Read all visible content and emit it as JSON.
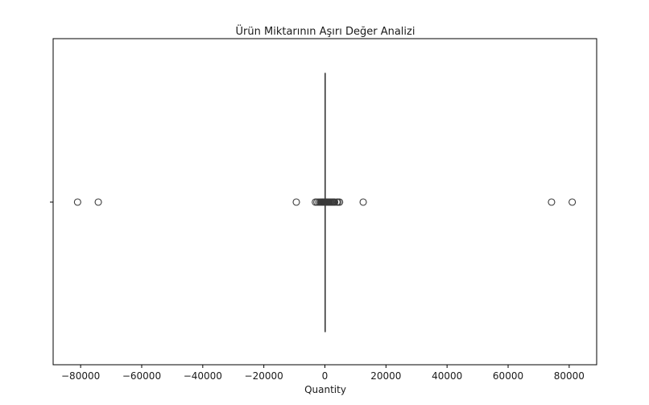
{
  "chart_data": {
    "type": "boxplot",
    "orientation": "horizontal",
    "title": "Ürün Miktarının Aşırı Değer Analizi",
    "xlabel": "Quantity",
    "ylabel": "",
    "xlim": [
      -89000,
      89000
    ],
    "xticks": [
      -80000,
      -60000,
      -40000,
      -20000,
      0,
      20000,
      40000,
      60000,
      80000
    ],
    "xtick_labels": [
      "−80000",
      "−60000",
      "−40000",
      "−20000",
      "0",
      "20000",
      "40000",
      "60000",
      "80000"
    ],
    "grid": false,
    "legend": "none",
    "series": [
      {
        "whisker_low": -13,
        "q1": 2,
        "median": 6,
        "q3": 12,
        "whisker_high": 26,
        "outliers": [
          -80995,
          -74215,
          -9360,
          -3114,
          -2600,
          -2000,
          -1500,
          -1200,
          -900,
          -700,
          -500,
          -400,
          -300,
          -250,
          -200,
          -150,
          -120,
          -100,
          -80,
          -60,
          -50,
          -40,
          -30,
          30,
          40,
          50,
          60,
          80,
          100,
          120,
          150,
          200,
          250,
          300,
          400,
          500,
          600,
          700,
          800,
          900,
          1000,
          1200,
          1300,
          1500,
          1800,
          2000,
          2400,
          2600,
          2800,
          3000,
          3186,
          3906,
          4300,
          4800,
          12540,
          74215,
          80995
        ]
      }
    ]
  }
}
